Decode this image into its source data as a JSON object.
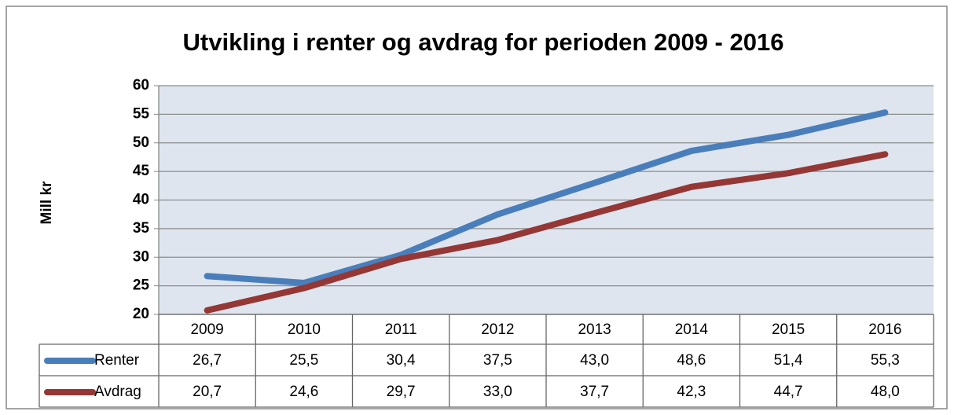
{
  "chart_data": {
    "type": "line",
    "title": "Utvikling i renter og avdrag for perioden 2009 - 2016",
    "y_label": "Mill kr",
    "categories": [
      "2009",
      "2010",
      "2011",
      "2012",
      "2013",
      "2014",
      "2015",
      "2016"
    ],
    "series": [
      {
        "name": "Renter",
        "color": "#4a7ebb",
        "values": [
          26.7,
          25.5,
          30.4,
          37.5,
          43.0,
          48.6,
          51.4,
          55.3
        ],
        "value_labels": [
          "26,7",
          "25,5",
          "30,4",
          "37,5",
          "43,0",
          "48,6",
          "51,4",
          "55,3"
        ]
      },
      {
        "name": "Avdrag",
        "color": "#953735",
        "values": [
          20.7,
          24.6,
          29.7,
          33.0,
          37.7,
          42.3,
          44.7,
          48.0
        ],
        "value_labels": [
          "20,7",
          "24,6",
          "29,7",
          "33,0",
          "37,7",
          "42,3",
          "44,7",
          "48,0"
        ]
      }
    ],
    "ylim": [
      20,
      60
    ],
    "yticks": [
      20,
      25,
      30,
      35,
      40,
      45,
      50,
      55,
      60
    ],
    "grid": true
  }
}
